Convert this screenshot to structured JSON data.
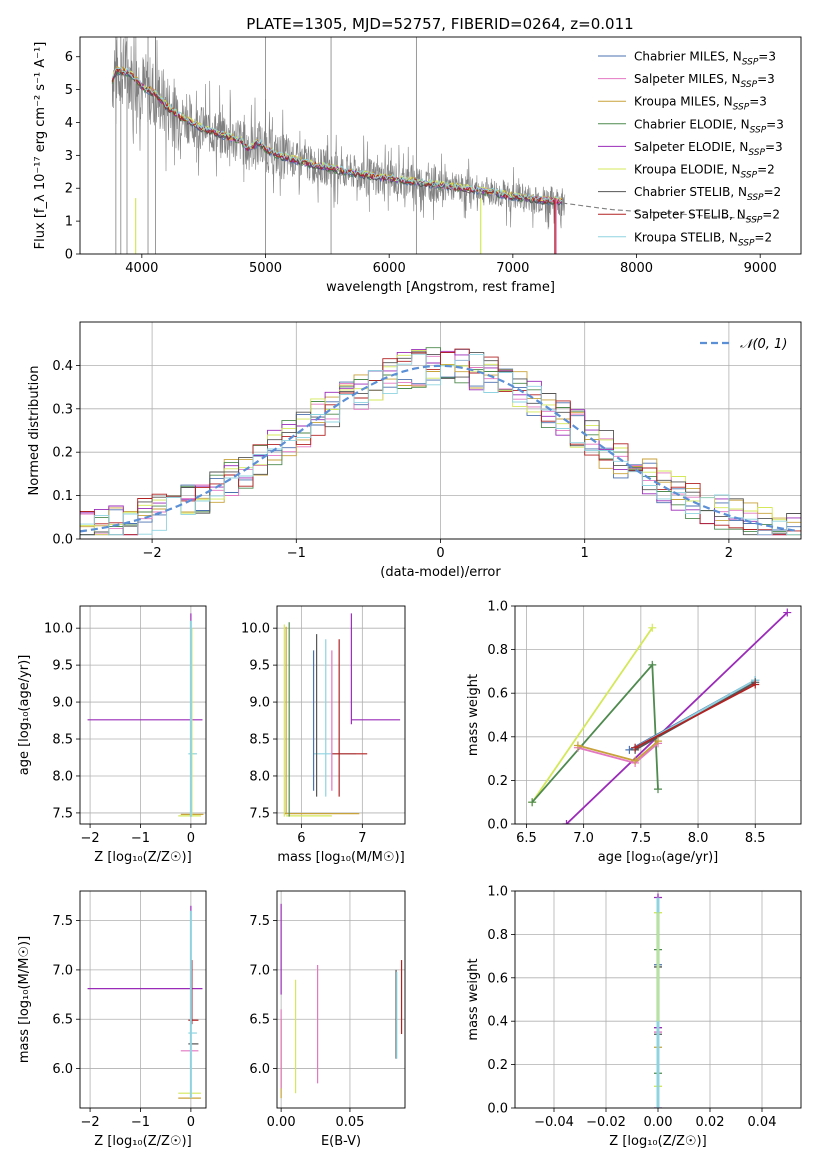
{
  "figure": {
    "title": "PLATE=1305, MJD=52757, FIBERID=0264, z=0.011"
  },
  "colors": {
    "Chabrier MILES": "#4c72b0",
    "Salpeter MILES": "#e377c2",
    "Kroupa MILES": "#c8a23a",
    "Chabrier ELODIE": "#4f8a4f",
    "Salpeter ELODIE": "#9a2bb8",
    "Kroupa ELODIE": "#d4e85a",
    "Chabrier STELIB": "#555555",
    "Salpeter STELIB": "#b22222",
    "Kroupa STELIB": "#8fd3e0",
    "data": "#808080",
    "normal": "#5b8fd6"
  },
  "chart_data": [
    {
      "id": "spectrum",
      "type": "line",
      "xlabel": "wavelength [Angstrom, rest frame]",
      "ylabel": "Flux [f_λ 10⁻¹⁷ erg cm⁻² s⁻¹ A⁻¹]",
      "xlim": [
        3500,
        9330
      ],
      "ylim": [
        0,
        6.6
      ],
      "xticks": [
        4000,
        5000,
        6000,
        7000,
        8000,
        9000
      ],
      "yticks": [
        0,
        1,
        2,
        3,
        4,
        5,
        6
      ],
      "grid": false,
      "legend_position": "top-right",
      "legend": [
        {
          "name": "Chabrier MILES",
          "nssp": "3"
        },
        {
          "name": "Salpeter MILES",
          "nssp": "3"
        },
        {
          "name": "Kroupa MILES",
          "nssp": "3"
        },
        {
          "name": "Chabrier ELODIE",
          "nssp": "3"
        },
        {
          "name": "Salpeter ELODIE",
          "nssp": "3"
        },
        {
          "name": "Kroupa ELODIE",
          "nssp": "2"
        },
        {
          "name": "Chabrier STELIB",
          "nssp": "2"
        },
        {
          "name": "Salpeter STELIB",
          "nssp": "2"
        },
        {
          "name": "Kroupa STELIB",
          "nssp": "2"
        }
      ],
      "model_trend": {
        "x": [
          3760,
          3800,
          3900,
          4000,
          4100,
          4200,
          4300,
          4400,
          4500,
          4600,
          4700,
          4800,
          4860,
          4950,
          5000,
          5100,
          5200,
          5400,
          5600,
          5800,
          6000,
          6200,
          6400,
          6600,
          6800,
          7000,
          7200,
          7400
        ],
        "y": [
          5.3,
          5.6,
          5.5,
          5.1,
          4.9,
          4.5,
          4.2,
          4.0,
          3.8,
          3.7,
          3.55,
          3.45,
          3.2,
          3.4,
          3.2,
          3.0,
          2.9,
          2.7,
          2.55,
          2.4,
          2.3,
          2.2,
          2.1,
          2.0,
          1.9,
          1.75,
          1.65,
          1.6
        ]
      },
      "model_tail": {
        "x": [
          7400,
          7600,
          7800,
          8000,
          8200,
          8400,
          8600,
          8800,
          9000
        ],
        "y": [
          1.55,
          1.45,
          1.35,
          1.3,
          1.25,
          1.2,
          1.15,
          1.1,
          1.05
        ]
      }
    },
    {
      "id": "residuals",
      "type": "line",
      "xlabel": "(data-model)/error",
      "ylabel": "Normed distribution",
      "xlim": [
        -2.5,
        2.5
      ],
      "ylim": [
        0,
        0.5
      ],
      "xticks": [
        -2,
        -1,
        0,
        1,
        2
      ],
      "yticks": [
        0.0,
        0.1,
        0.2,
        0.3,
        0.4
      ],
      "grid": true,
      "legend_position": "top-right",
      "legend": [
        {
          "name": "𝒩(0, 1)"
        }
      ],
      "bin_width": 0.1
    },
    {
      "id": "age_vs_Z",
      "type": "scatter",
      "xlabel": "Z [log₁₀(Z/Z☉)]",
      "ylabel": "age  [log₁₀(age/yr)]",
      "xlim": [
        -2.2,
        0.3
      ],
      "ylim": [
        7.35,
        10.3
      ],
      "xticks": [
        -2,
        -1,
        0
      ],
      "yticks": [
        7.5,
        8.0,
        8.5,
        9.0,
        9.5,
        10.0
      ],
      "grid": true,
      "horizontal_segments": [
        {
          "model": "Salpeter ELODIE",
          "x0": -2.05,
          "x1": 0.23,
          "y": 8.76
        },
        {
          "model": "Kroupa STELIB",
          "x0": -0.05,
          "x1": 0.12,
          "y": 8.3
        },
        {
          "model": "Kroupa MILES",
          "x0": -0.2,
          "x1": 0.25,
          "y": 7.48
        },
        {
          "model": "Kroupa ELODIE",
          "x0": -0.25,
          "x1": 0.2,
          "y": 7.46
        }
      ],
      "vertical_segments": [
        {
          "model": "Salpeter ELODIE",
          "x": 0.0,
          "y0": 7.5,
          "y1": 10.2
        },
        {
          "model": "Chabrier ELODIE",
          "x": 0.0,
          "y0": 7.45,
          "y1": 10.05
        },
        {
          "model": "Kroupa ELODIE",
          "x": 0.02,
          "y0": 7.45,
          "y1": 10.0
        }
      ]
    },
    {
      "id": "age_vs_mass",
      "type": "scatter",
      "xlabel": "mass [log₁₀(M/M☉)]",
      "ylabel": "",
      "xlim": [
        5.6,
        7.7
      ],
      "ylim": [
        7.35,
        10.3
      ],
      "xticks": [
        6,
        7
      ],
      "yticks": [
        7.5,
        8.0,
        8.5,
        9.0,
        9.5,
        10.0
      ],
      "grid": true,
      "horizontal_segments": [
        {
          "model": "Salpeter ELODIE",
          "x0": 6.82,
          "x1": 7.62,
          "y": 8.76
        },
        {
          "model": "Kroupa STELIB",
          "x0": 6.2,
          "x1": 6.9,
          "y": 8.3
        },
        {
          "model": "Salpeter STELIB",
          "x0": 6.5,
          "x1": 7.08,
          "y": 8.3
        },
        {
          "model": "Kroupa MILES",
          "x0": 5.72,
          "x1": 6.95,
          "y": 7.49
        },
        {
          "model": "Kroupa ELODIE",
          "x0": 5.75,
          "x1": 6.5,
          "y": 7.46
        }
      ],
      "vertical_segments": [
        {
          "model": "Kroupa ELODIE",
          "x": 5.72,
          "y0": 7.45,
          "y1": 10.05
        },
        {
          "model": "Kroupa MILES",
          "x": 5.75,
          "y0": 7.48,
          "y1": 10.02
        },
        {
          "model": "Chabrier ELODIE",
          "x": 5.8,
          "y0": 7.45,
          "y1": 10.08
        },
        {
          "model": "Chabrier MILES",
          "x": 6.2,
          "y0": 7.8,
          "y1": 9.7
        },
        {
          "model": "Chabrier STELIB",
          "x": 6.25,
          "y0": 7.72,
          "y1": 9.92
        },
        {
          "model": "Kroupa STELIB",
          "x": 6.4,
          "y0": 7.72,
          "y1": 9.85
        },
        {
          "model": "Salpeter MILES",
          "x": 6.5,
          "y0": 7.8,
          "y1": 9.7
        },
        {
          "model": "Salpeter STELIB",
          "x": 6.62,
          "y0": 7.72,
          "y1": 9.85
        },
        {
          "model": "Salpeter ELODIE",
          "x": 6.82,
          "y0": 8.7,
          "y1": 10.2
        }
      ]
    },
    {
      "id": "massweight_vs_age",
      "type": "line",
      "xlabel": "age  [log₁₀(age/yr)]",
      "ylabel": "mass weight",
      "xlim": [
        6.4,
        8.9
      ],
      "ylim": [
        0,
        1.0
      ],
      "xticks": [
        6.5,
        7.0,
        7.5,
        8.0,
        8.5
      ],
      "yticks": [
        0.0,
        0.2,
        0.4,
        0.6,
        0.8,
        1.0
      ],
      "grid": true,
      "series": [
        {
          "model": "Salpeter ELODIE",
          "x": [
            6.85,
            8.78
          ],
          "y": [
            0.0,
            0.97
          ]
        },
        {
          "model": "Kroupa ELODIE",
          "x": [
            6.55,
            7.6
          ],
          "y": [
            0.1,
            0.9
          ]
        },
        {
          "model": "Chabrier ELODIE",
          "x": [
            6.55,
            7.6,
            7.65
          ],
          "y": [
            0.1,
            0.73,
            0.16
          ]
        },
        {
          "model": "Chabrier MILES",
          "x": [
            7.4,
            8.5
          ],
          "y": [
            0.34,
            0.66
          ]
        },
        {
          "model": "Kroupa STELIB",
          "x": [
            7.45,
            8.5
          ],
          "y": [
            0.35,
            0.66
          ]
        },
        {
          "model": "Chabrier STELIB",
          "x": [
            7.45,
            8.5
          ],
          "y": [
            0.34,
            0.65
          ]
        },
        {
          "model": "Salpeter STELIB",
          "x": [
            7.45,
            8.5
          ],
          "y": [
            0.35,
            0.64
          ]
        },
        {
          "model": "Salpeter MILES",
          "x": [
            6.95,
            7.45,
            7.65
          ],
          "y": [
            0.35,
            0.28,
            0.37
          ]
        },
        {
          "model": "Kroupa MILES",
          "x": [
            6.95,
            7.45,
            7.65
          ],
          "y": [
            0.36,
            0.29,
            0.38
          ]
        }
      ]
    },
    {
      "id": "mass_vs_Z",
      "type": "scatter",
      "xlabel": "Z [log₁₀(Z/Z☉)]",
      "ylabel": "mass [log₁₀(M/M☉)]",
      "xlim": [
        -2.2,
        0.3
      ],
      "ylim": [
        5.6,
        7.8
      ],
      "xticks": [
        -2,
        -1,
        0
      ],
      "yticks": [
        6.0,
        6.5,
        7.0,
        7.5
      ],
      "grid": true,
      "horizontal_segments": [
        {
          "model": "Salpeter ELODIE",
          "x0": -2.05,
          "x1": 0.23,
          "y": 6.81
        },
        {
          "model": "Salpeter MILES",
          "x0": -0.2,
          "x1": 0.15,
          "y": 6.18
        },
        {
          "model": "Kroupa STELIB",
          "x0": -0.05,
          "x1": 0.12,
          "y": 6.36
        },
        {
          "model": "Salpeter STELIB",
          "x0": -0.05,
          "x1": 0.15,
          "y": 6.49
        },
        {
          "model": "Chabrier STELIB",
          "x0": -0.05,
          "x1": 0.15,
          "y": 6.25
        },
        {
          "model": "Kroupa MILES",
          "x0": -0.25,
          "x1": 0.2,
          "y": 5.7
        },
        {
          "model": "Kroupa ELODIE",
          "x0": -0.25,
          "x1": 0.2,
          "y": 5.75
        }
      ],
      "vertical_segments": [
        {
          "model": "Salpeter ELODIE",
          "x": 0.0,
          "y0": 6.5,
          "y1": 7.65
        },
        {
          "model": "Salpeter STELIB",
          "x": 0.02,
          "y0": 6.45,
          "y1": 7.1
        }
      ]
    },
    {
      "id": "mass_vs_ebv",
      "type": "scatter",
      "xlabel": "E(B-V)",
      "ylabel": "",
      "xlim": [
        -0.003,
        0.09
      ],
      "ylim": [
        5.6,
        7.8
      ],
      "xticks": [
        0.0,
        0.05
      ],
      "yticks": [
        6.0,
        6.5,
        7.0,
        7.5
      ],
      "grid": true,
      "vertical_segments": [
        {
          "model": "Salpeter ELODIE",
          "x": 0.0,
          "y0": 6.75,
          "y1": 7.67
        },
        {
          "model": "Kroupa MILES",
          "x": 0.0,
          "y0": 5.7,
          "y1": 6.5
        },
        {
          "model": "Salpeter MILES",
          "x": 0.0,
          "y0": 5.8,
          "y1": 6.6
        },
        {
          "model": "Kroupa ELODIE",
          "x": 0.0105,
          "y0": 5.75,
          "y1": 6.9
        },
        {
          "model": "Salpeter MILES",
          "x": 0.0265,
          "y0": 5.85,
          "y1": 7.05
        },
        {
          "model": "Chabrier STELIB",
          "x": 0.0835,
          "y0": 6.1,
          "y1": 7.0
        },
        {
          "model": "Kroupa STELIB",
          "x": 0.084,
          "y0": 6.1,
          "y1": 6.98
        },
        {
          "model": "Salpeter STELIB",
          "x": 0.0875,
          "y0": 6.35,
          "y1": 7.1
        }
      ]
    },
    {
      "id": "massweight_vs_Z",
      "type": "scatter",
      "xlabel": "Z [log₁₀(Z/Z☉)]",
      "ylabel": "mass weight",
      "xlim": [
        -0.055,
        0.055
      ],
      "ylim": [
        0,
        1.0
      ],
      "xticks": [
        -0.04,
        -0.02,
        0.0,
        0.02,
        0.04
      ],
      "yticks": [
        0.0,
        0.2,
        0.4,
        0.6,
        0.8,
        1.0
      ],
      "grid": true,
      "points": [
        {
          "model": "Salpeter ELODIE",
          "x": 0.0,
          "y": 0.97
        },
        {
          "model": "Kroupa ELODIE",
          "x": 0.0,
          "y": 0.9
        },
        {
          "model": "Chabrier ELODIE",
          "x": 0.0,
          "y": 0.73
        },
        {
          "model": "Chabrier MILES",
          "x": 0.0,
          "y": 0.66
        },
        {
          "model": "Chabrier STELIB",
          "x": 0.0,
          "y": 0.65
        },
        {
          "model": "Salpeter ELODIE",
          "x": 0.0,
          "y": 0.37
        },
        {
          "model": "Salpeter MILES",
          "x": 0.0,
          "y": 0.35
        },
        {
          "model": "Chabrier STELIB",
          "x": 0.0,
          "y": 0.34
        },
        {
          "model": "Kroupa MILES",
          "x": 0.0,
          "y": 0.28
        },
        {
          "model": "Chabrier ELODIE",
          "x": 0.0,
          "y": 0.16
        },
        {
          "model": "Kroupa ELODIE",
          "x": 0.0,
          "y": 0.1
        },
        {
          "model": "Salpeter ELODIE",
          "x": 0.0,
          "y": 0.0
        }
      ]
    }
  ]
}
